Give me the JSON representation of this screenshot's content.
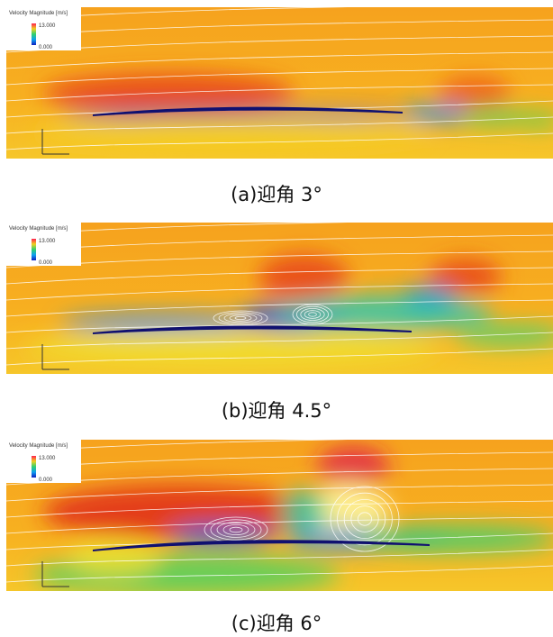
{
  "figure": {
    "panels": [
      {
        "legend_title": "Velocity Magnitude [m/s]",
        "legend_max": "13.000",
        "legend_min": "0.000",
        "caption": "(a)迎角 3°"
      },
      {
        "legend_title": "Velocity Magnitude [m/s]",
        "legend_max": "13.000",
        "legend_min": "0.000",
        "caption": "(b)迎角 4.5°"
      },
      {
        "legend_title": "Velocity Magnitude [m/s]",
        "legend_max": "13.000",
        "legend_min": "0.000",
        "caption": "(c)迎角 6°"
      }
    ]
  }
}
